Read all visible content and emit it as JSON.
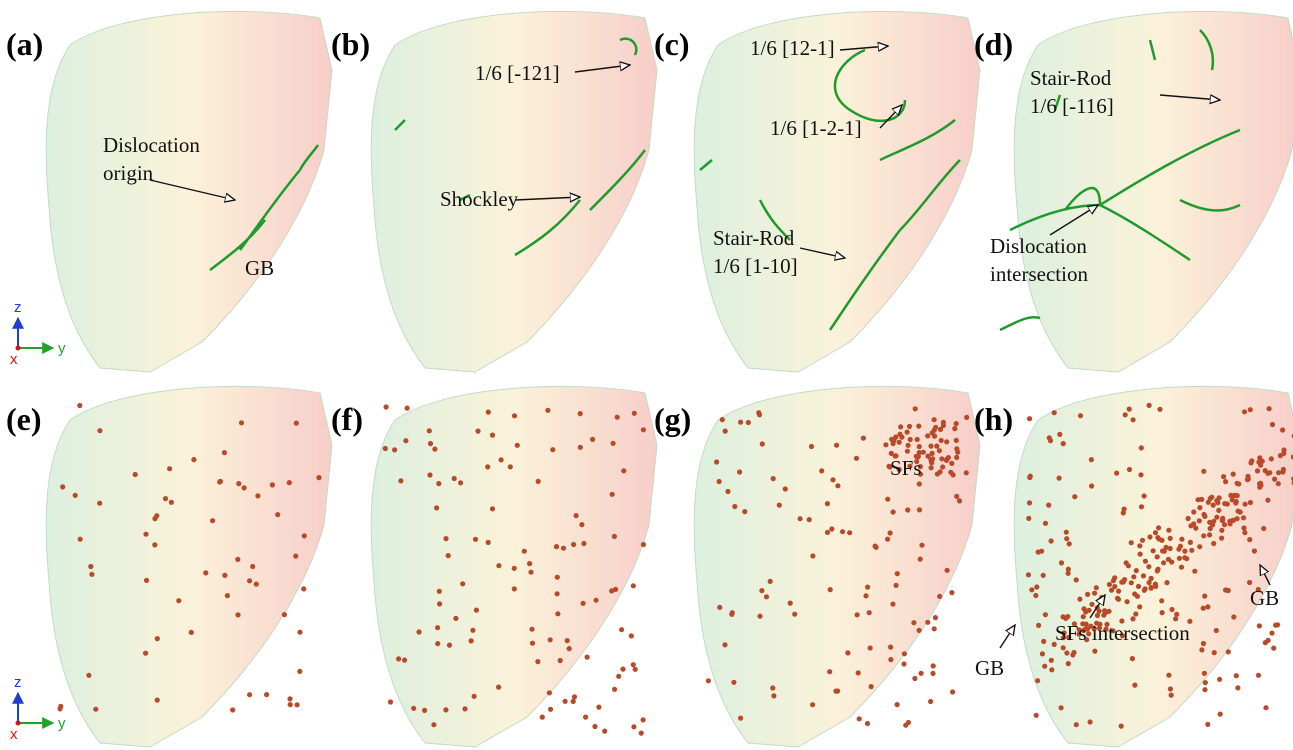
{
  "panels": [
    {
      "label": "(a)",
      "annotations": [
        {
          "lines": [
            "Dislocation",
            "origin"
          ]
        },
        {
          "lines": [
            "GB"
          ]
        }
      ]
    },
    {
      "label": "(b)",
      "annotations": [
        {
          "lines": [
            "1/6 [-121]"
          ]
        },
        {
          "lines": [
            "Shockley"
          ]
        }
      ]
    },
    {
      "label": "(c)",
      "annotations": [
        {
          "lines": [
            "1/6 [12-1]"
          ]
        },
        {
          "lines": [
            "1/6 [1-2-1]"
          ]
        },
        {
          "lines": [
            "Stair-Rod",
            "1/6 [1-10]"
          ]
        }
      ]
    },
    {
      "label": "(d)",
      "annotations": [
        {
          "lines": [
            "Stair-Rod",
            "1/6 [-116]"
          ]
        },
        {
          "lines": [
            "Dislocation",
            "intersection"
          ]
        }
      ]
    },
    {
      "label": "(e)",
      "annotations": []
    },
    {
      "label": "(f)",
      "annotations": []
    },
    {
      "label": "(g)",
      "annotations": [
        {
          "lines": [
            "SFs"
          ]
        }
      ]
    },
    {
      "label": "(h)",
      "annotations": [
        {
          "lines": [
            "GB"
          ]
        },
        {
          "lines": [
            "SFs intersection"
          ]
        },
        {
          "lines": [
            "GB"
          ]
        }
      ]
    }
  ],
  "axes": [
    {
      "z": "z",
      "y": "y",
      "x": "x"
    },
    {
      "z": "z",
      "y": "y",
      "x": "x"
    }
  ]
}
